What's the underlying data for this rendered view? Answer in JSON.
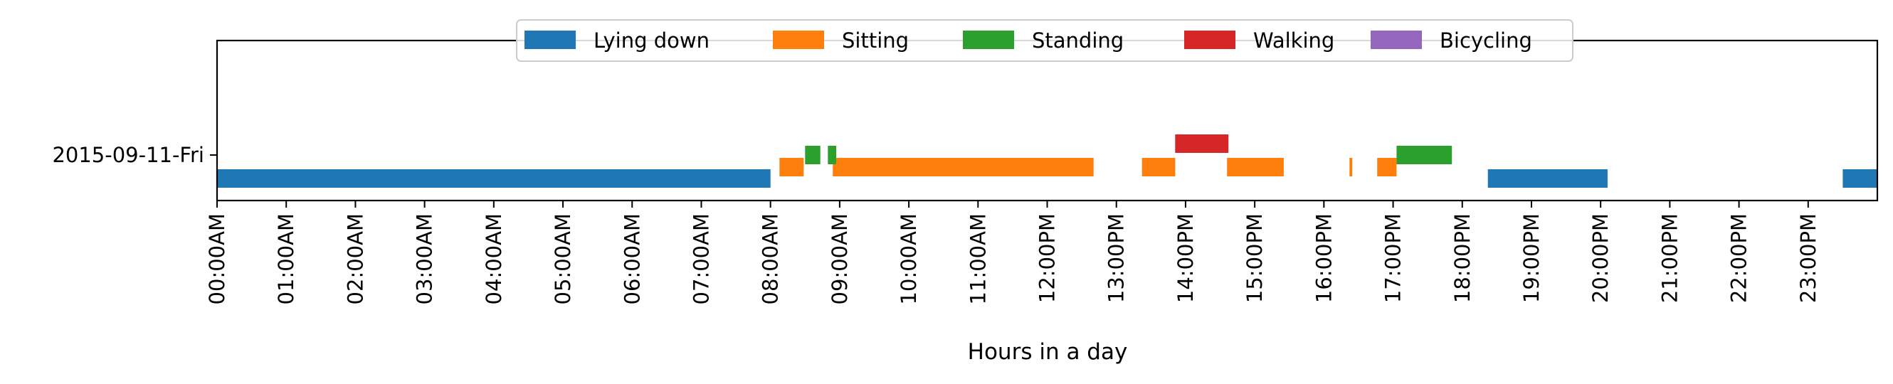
{
  "chart_data": {
    "type": "timeline",
    "xlabel": "Hours in a day",
    "ylabel": "",
    "xlim": [
      0,
      24
    ],
    "x_ticks": [
      0,
      1,
      2,
      3,
      4,
      5,
      6,
      7,
      8,
      9,
      10,
      11,
      12,
      13,
      14,
      15,
      16,
      17,
      18,
      19,
      20,
      21,
      22,
      23
    ],
    "x_tick_labels": [
      "00:00AM",
      "01:00AM",
      "02:00AM",
      "03:00AM",
      "04:00AM",
      "05:00AM",
      "06:00AM",
      "07:00AM",
      "08:00AM",
      "09:00AM",
      "10:00AM",
      "11:00AM",
      "12:00PM",
      "13:00PM",
      "14:00PM",
      "15:00PM",
      "16:00PM",
      "17:00PM",
      "18:00PM",
      "19:00PM",
      "20:00PM",
      "21:00PM",
      "22:00PM",
      "23:00PM"
    ],
    "rows": [
      "2015-09-11-Fri"
    ],
    "legend_position": "top-center",
    "grid": false,
    "series": [
      {
        "name": "Lying down",
        "color": "#1f77b4",
        "lane": 0,
        "segments": [
          [
            0.0,
            8.0
          ],
          [
            18.37,
            20.1
          ],
          [
            23.5,
            24.0
          ]
        ]
      },
      {
        "name": "Sitting",
        "color": "#ff7f0e",
        "lane": 1,
        "segments": [
          [
            8.13,
            8.48
          ],
          [
            8.9,
            12.67
          ],
          [
            13.37,
            13.85
          ],
          [
            14.6,
            15.42
          ],
          [
            16.37,
            16.41
          ],
          [
            16.77,
            17.05
          ]
        ]
      },
      {
        "name": "Standing",
        "color": "#2ca02c",
        "lane": 2,
        "segments": [
          [
            8.5,
            8.72
          ],
          [
            8.83,
            8.95
          ],
          [
            17.05,
            17.85
          ]
        ]
      },
      {
        "name": "Walking",
        "color": "#d62728",
        "lane": 3,
        "segments": [
          [
            13.85,
            14.62
          ]
        ]
      },
      {
        "name": "Bicycling",
        "color": "#9467bd",
        "lane": 4,
        "segments": []
      }
    ]
  }
}
